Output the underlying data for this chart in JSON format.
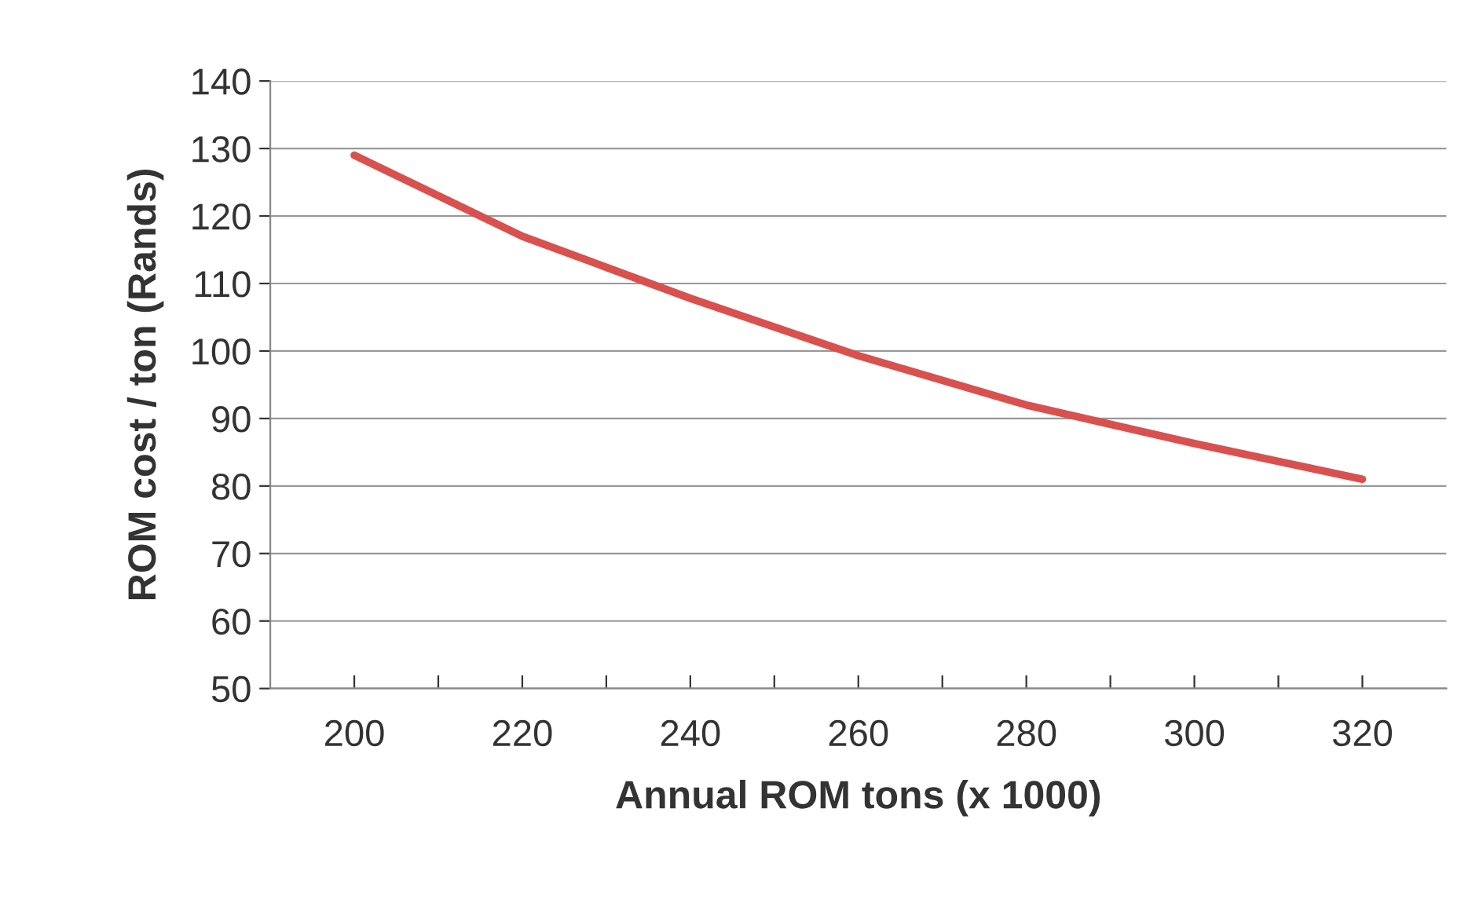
{
  "chart_data": {
    "type": "line",
    "xlabel": "Annual ROM tons (x 1000)",
    "ylabel": "ROM cost / ton (Rands)",
    "x": [
      200,
      220,
      240,
      260,
      280,
      300,
      320
    ],
    "series": [
      {
        "color": "#d9514e",
        "values": [
          129,
          117,
          107.8,
          99.3,
          92,
          86.3,
          81
        ]
      }
    ],
    "xlim": [
      190,
      330
    ],
    "xticks": [
      200,
      {
        "value": 210,
        "label": null
      },
      220,
      {
        "value": 230,
        "label": null
      },
      240,
      {
        "value": 250,
        "label": null
      },
      260,
      {
        "value": 270,
        "label": null
      },
      280,
      {
        "value": 290,
        "label": null
      },
      300,
      {
        "value": 310,
        "label": null
      },
      320
    ],
    "ylim": [
      50,
      140
    ],
    "yticks": [
      50,
      60,
      70,
      80,
      90,
      100,
      110,
      120,
      130,
      140
    ],
    "grid": "y",
    "marker": "none",
    "line_style": "solid",
    "legend": false
  }
}
